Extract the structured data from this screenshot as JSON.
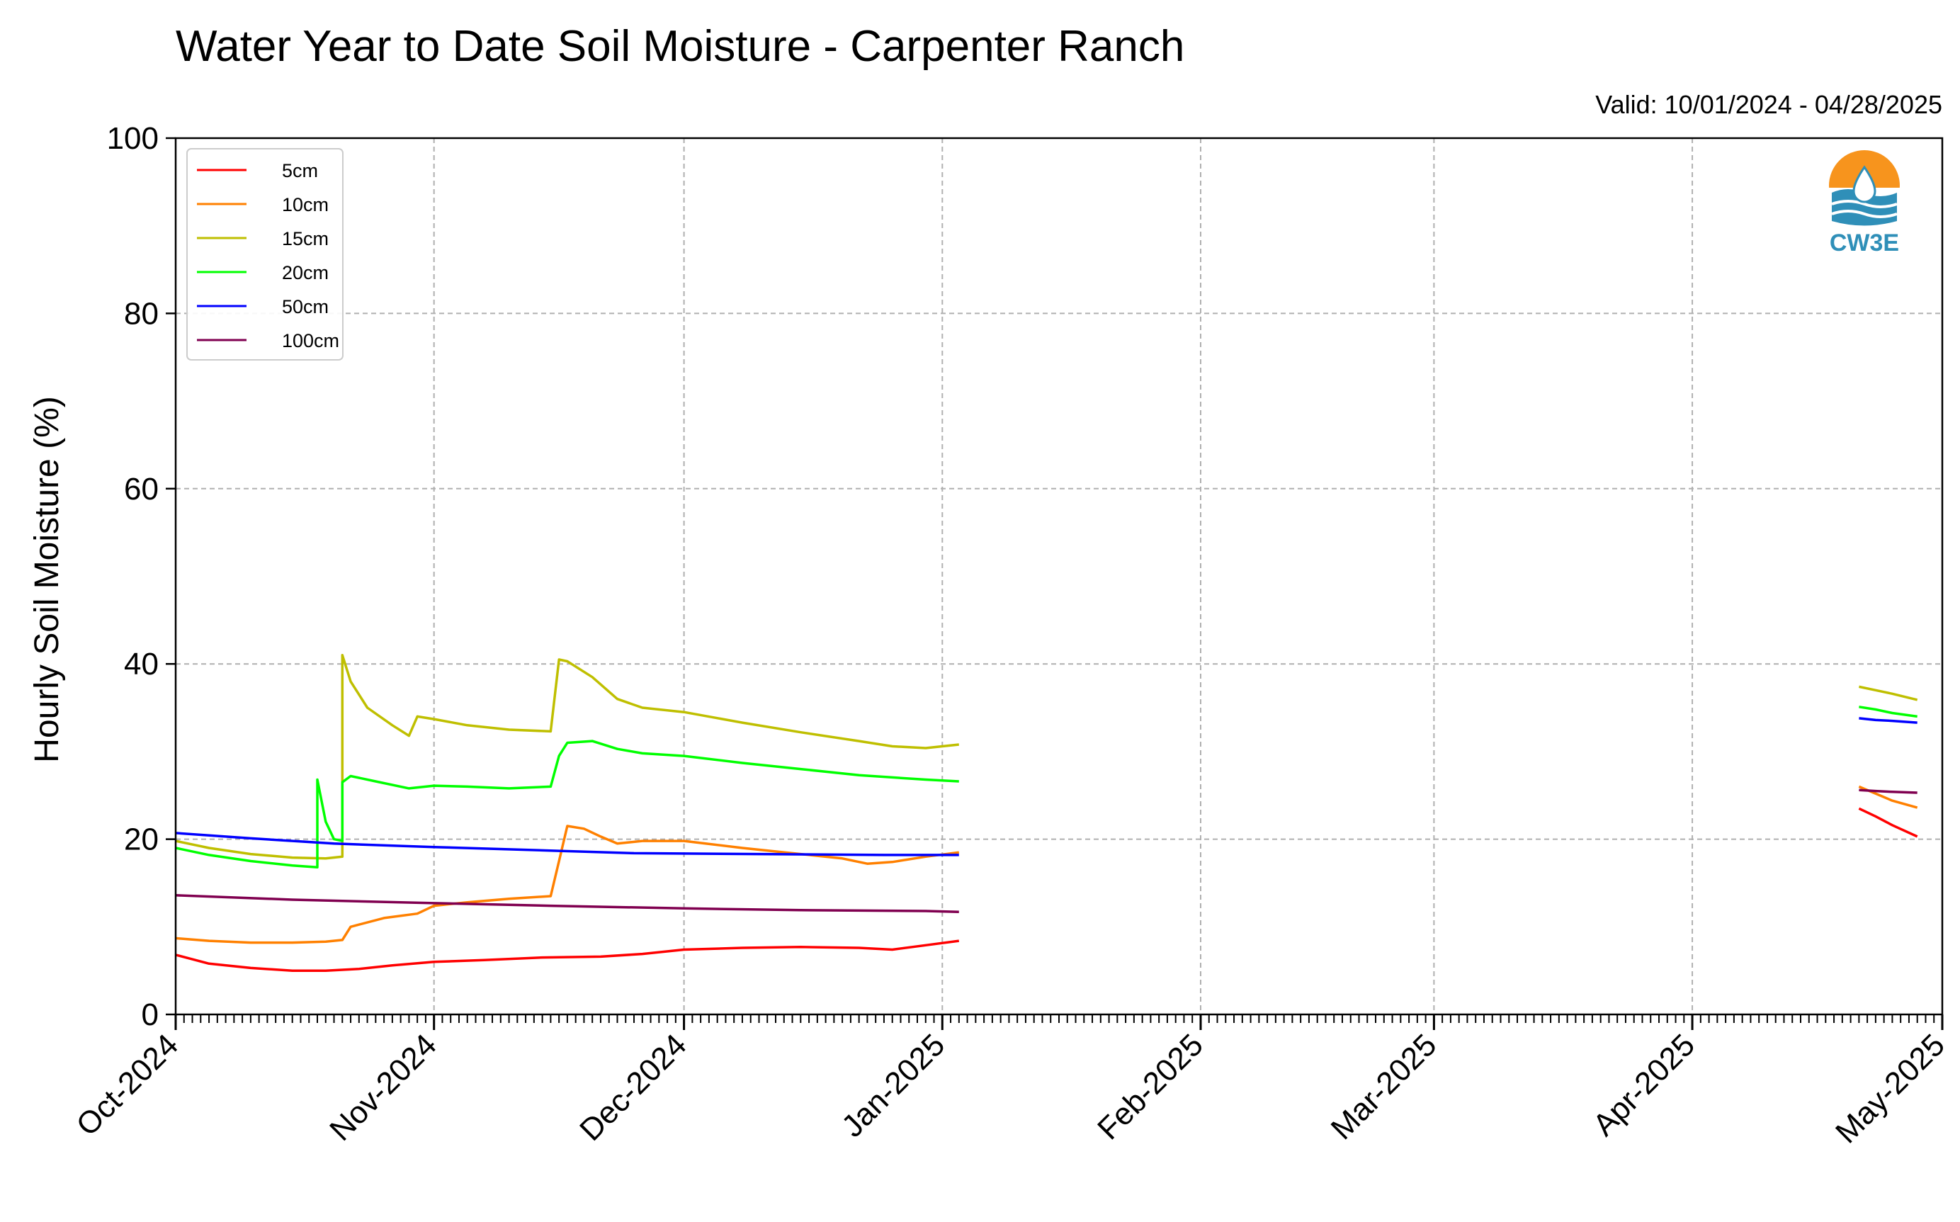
{
  "chart_data": {
    "type": "line",
    "title": "Water Year to Date Soil Moisture - Carpenter Ranch",
    "valid_text": "Valid: 10/01/2024 - 04/28/2025",
    "ylabel": "Hourly Soil Moisture (%)",
    "xlabel": "",
    "ylim": [
      0,
      100
    ],
    "yticks": [
      0,
      20,
      40,
      60,
      80,
      100
    ],
    "xlim": [
      "2024-10-01",
      "2025-05-01"
    ],
    "xticks": [
      {
        "date": "2024-10-01",
        "label": "Oct-2024"
      },
      {
        "date": "2024-11-01",
        "label": "Nov-2024"
      },
      {
        "date": "2024-12-01",
        "label": "Dec-2024"
      },
      {
        "date": "2025-01-01",
        "label": "Jan-2025"
      },
      {
        "date": "2025-02-01",
        "label": "Feb-2025"
      },
      {
        "date": "2025-03-01",
        "label": "Mar-2025"
      },
      {
        "date": "2025-04-01",
        "label": "Apr-2025"
      },
      {
        "date": "2025-05-01",
        "label": "May-2025"
      }
    ],
    "grid": true,
    "legend_position": "top-left",
    "logo_text": "CW3E",
    "series": [
      {
        "name": "5cm",
        "color": "#ff0000",
        "segments": [
          {
            "x": [
              "2024-10-01",
              "2024-10-05",
              "2024-10-10",
              "2024-10-15",
              "2024-10-19",
              "2024-10-23",
              "2024-10-27",
              "2024-11-01",
              "2024-11-07",
              "2024-11-14",
              "2024-11-21",
              "2024-11-26",
              "2024-12-01",
              "2024-12-08",
              "2024-12-15",
              "2024-12-22",
              "2024-12-26",
              "2024-12-30",
              "2025-01-03"
            ],
            "y": [
              6.8,
              5.8,
              5.3,
              5.0,
              5.0,
              5.2,
              5.6,
              6.0,
              6.2,
              6.5,
              6.6,
              6.9,
              7.4,
              7.6,
              7.7,
              7.6,
              7.4,
              7.9,
              8.4
            ]
          },
          {
            "x": [
              "2025-04-21",
              "2025-04-23",
              "2025-04-25",
              "2025-04-28"
            ],
            "y": [
              23.5,
              22.6,
              21.6,
              20.3
            ]
          }
        ]
      },
      {
        "name": "10cm",
        "color": "#ff8000",
        "segments": [
          {
            "x": [
              "2024-10-01",
              "2024-10-05",
              "2024-10-10",
              "2024-10-15",
              "2024-10-19",
              "2024-10-21",
              "2024-10-22",
              "2024-10-26",
              "2024-10-30",
              "2024-11-01",
              "2024-11-05",
              "2024-11-10",
              "2024-11-15",
              "2024-11-16",
              "2024-11-17",
              "2024-11-19",
              "2024-11-21",
              "2024-11-23",
              "2024-11-26",
              "2024-12-01",
              "2024-12-08",
              "2024-12-15",
              "2024-12-20",
              "2024-12-23",
              "2024-12-26",
              "2024-12-30",
              "2025-01-03"
            ],
            "y": [
              8.7,
              8.4,
              8.2,
              8.2,
              8.3,
              8.5,
              10.0,
              11.0,
              11.5,
              12.4,
              12.8,
              13.2,
              13.5,
              17.5,
              21.5,
              21.2,
              20.3,
              19.5,
              19.8,
              19.8,
              19.0,
              18.3,
              17.8,
              17.2,
              17.4,
              18.0,
              18.5
            ]
          },
          {
            "x": [
              "2025-04-21",
              "2025-04-23",
              "2025-04-25",
              "2025-04-28"
            ],
            "y": [
              26.0,
              25.2,
              24.4,
              23.6
            ]
          }
        ]
      },
      {
        "name": "15cm",
        "color": "#bfbf00",
        "segments": [
          {
            "x": [
              "2024-10-01",
              "2024-10-05",
              "2024-10-10",
              "2024-10-15",
              "2024-10-19",
              "2024-10-21",
              "2024-10-21",
              "2024-10-22",
              "2024-10-24",
              "2024-10-27",
              "2024-10-29",
              "2024-10-30",
              "2024-11-01",
              "2024-11-05",
              "2024-11-10",
              "2024-11-15",
              "2024-11-16",
              "2024-11-17",
              "2024-11-20",
              "2024-11-23",
              "2024-11-26",
              "2024-12-01",
              "2024-12-08",
              "2024-12-15",
              "2024-12-22",
              "2024-12-26",
              "2024-12-30",
              "2025-01-03"
            ],
            "y": [
              19.8,
              19.0,
              18.3,
              17.9,
              17.8,
              18.0,
              41.0,
              38.0,
              35.0,
              33.0,
              31.8,
              34.0,
              33.7,
              33.0,
              32.5,
              32.3,
              40.5,
              40.3,
              38.5,
              36.0,
              35.0,
              34.5,
              33.3,
              32.2,
              31.2,
              30.6,
              30.4,
              30.8
            ]
          },
          {
            "x": [
              "2025-04-21",
              "2025-04-23",
              "2025-04-25",
              "2025-04-28"
            ],
            "y": [
              37.4,
              37.0,
              36.6,
              35.9
            ]
          }
        ]
      },
      {
        "name": "20cm",
        "color": "#00ff00",
        "segments": [
          {
            "x": [
              "2024-10-01",
              "2024-10-05",
              "2024-10-10",
              "2024-10-15",
              "2024-10-18",
              "2024-10-18",
              "2024-10-19",
              "2024-10-20",
              "2024-10-21",
              "2024-10-21",
              "2024-10-22",
              "2024-10-25",
              "2024-10-29",
              "2024-11-01",
              "2024-11-05",
              "2024-11-10",
              "2024-11-15",
              "2024-11-16",
              "2024-11-17",
              "2024-11-20",
              "2024-11-23",
              "2024-11-26",
              "2024-12-01",
              "2024-12-08",
              "2024-12-15",
              "2024-12-22",
              "2024-12-30",
              "2025-01-03"
            ],
            "y": [
              19.0,
              18.2,
              17.5,
              17.0,
              16.8,
              26.8,
              22.0,
              20.0,
              19.8,
              26.5,
              27.2,
              26.6,
              25.8,
              26.1,
              26.0,
              25.8,
              26.0,
              29.5,
              31.0,
              31.2,
              30.3,
              29.8,
              29.5,
              28.7,
              28.0,
              27.3,
              26.8,
              26.6
            ]
          },
          {
            "x": [
              "2025-04-21",
              "2025-04-23",
              "2025-04-25",
              "2025-04-28"
            ],
            "y": [
              35.1,
              34.8,
              34.4,
              34.0
            ]
          }
        ]
      },
      {
        "name": "50cm",
        "color": "#0000ff",
        "segments": [
          {
            "x": [
              "2024-10-01",
              "2024-10-10",
              "2024-10-20",
              "2024-11-01",
              "2024-11-15",
              "2024-11-25",
              "2024-12-10",
              "2024-12-25",
              "2025-01-03"
            ],
            "y": [
              20.7,
              20.1,
              19.5,
              19.1,
              18.7,
              18.4,
              18.3,
              18.2,
              18.2
            ]
          },
          {
            "x": [
              "2025-04-21",
              "2025-04-23",
              "2025-04-25",
              "2025-04-28"
            ],
            "y": [
              33.8,
              33.6,
              33.5,
              33.3
            ]
          }
        ]
      },
      {
        "name": "100cm",
        "color": "#800050",
        "segments": [
          {
            "x": [
              "2024-10-01",
              "2024-10-15",
              "2024-11-01",
              "2024-11-15",
              "2024-12-01",
              "2024-12-15",
              "2024-12-30",
              "2025-01-03"
            ],
            "y": [
              13.6,
              13.1,
              12.7,
              12.4,
              12.1,
              11.9,
              11.8,
              11.7
            ]
          },
          {
            "x": [
              "2025-04-21",
              "2025-04-23",
              "2025-04-25",
              "2025-04-28"
            ],
            "y": [
              25.6,
              25.5,
              25.4,
              25.3
            ]
          }
        ]
      }
    ]
  }
}
